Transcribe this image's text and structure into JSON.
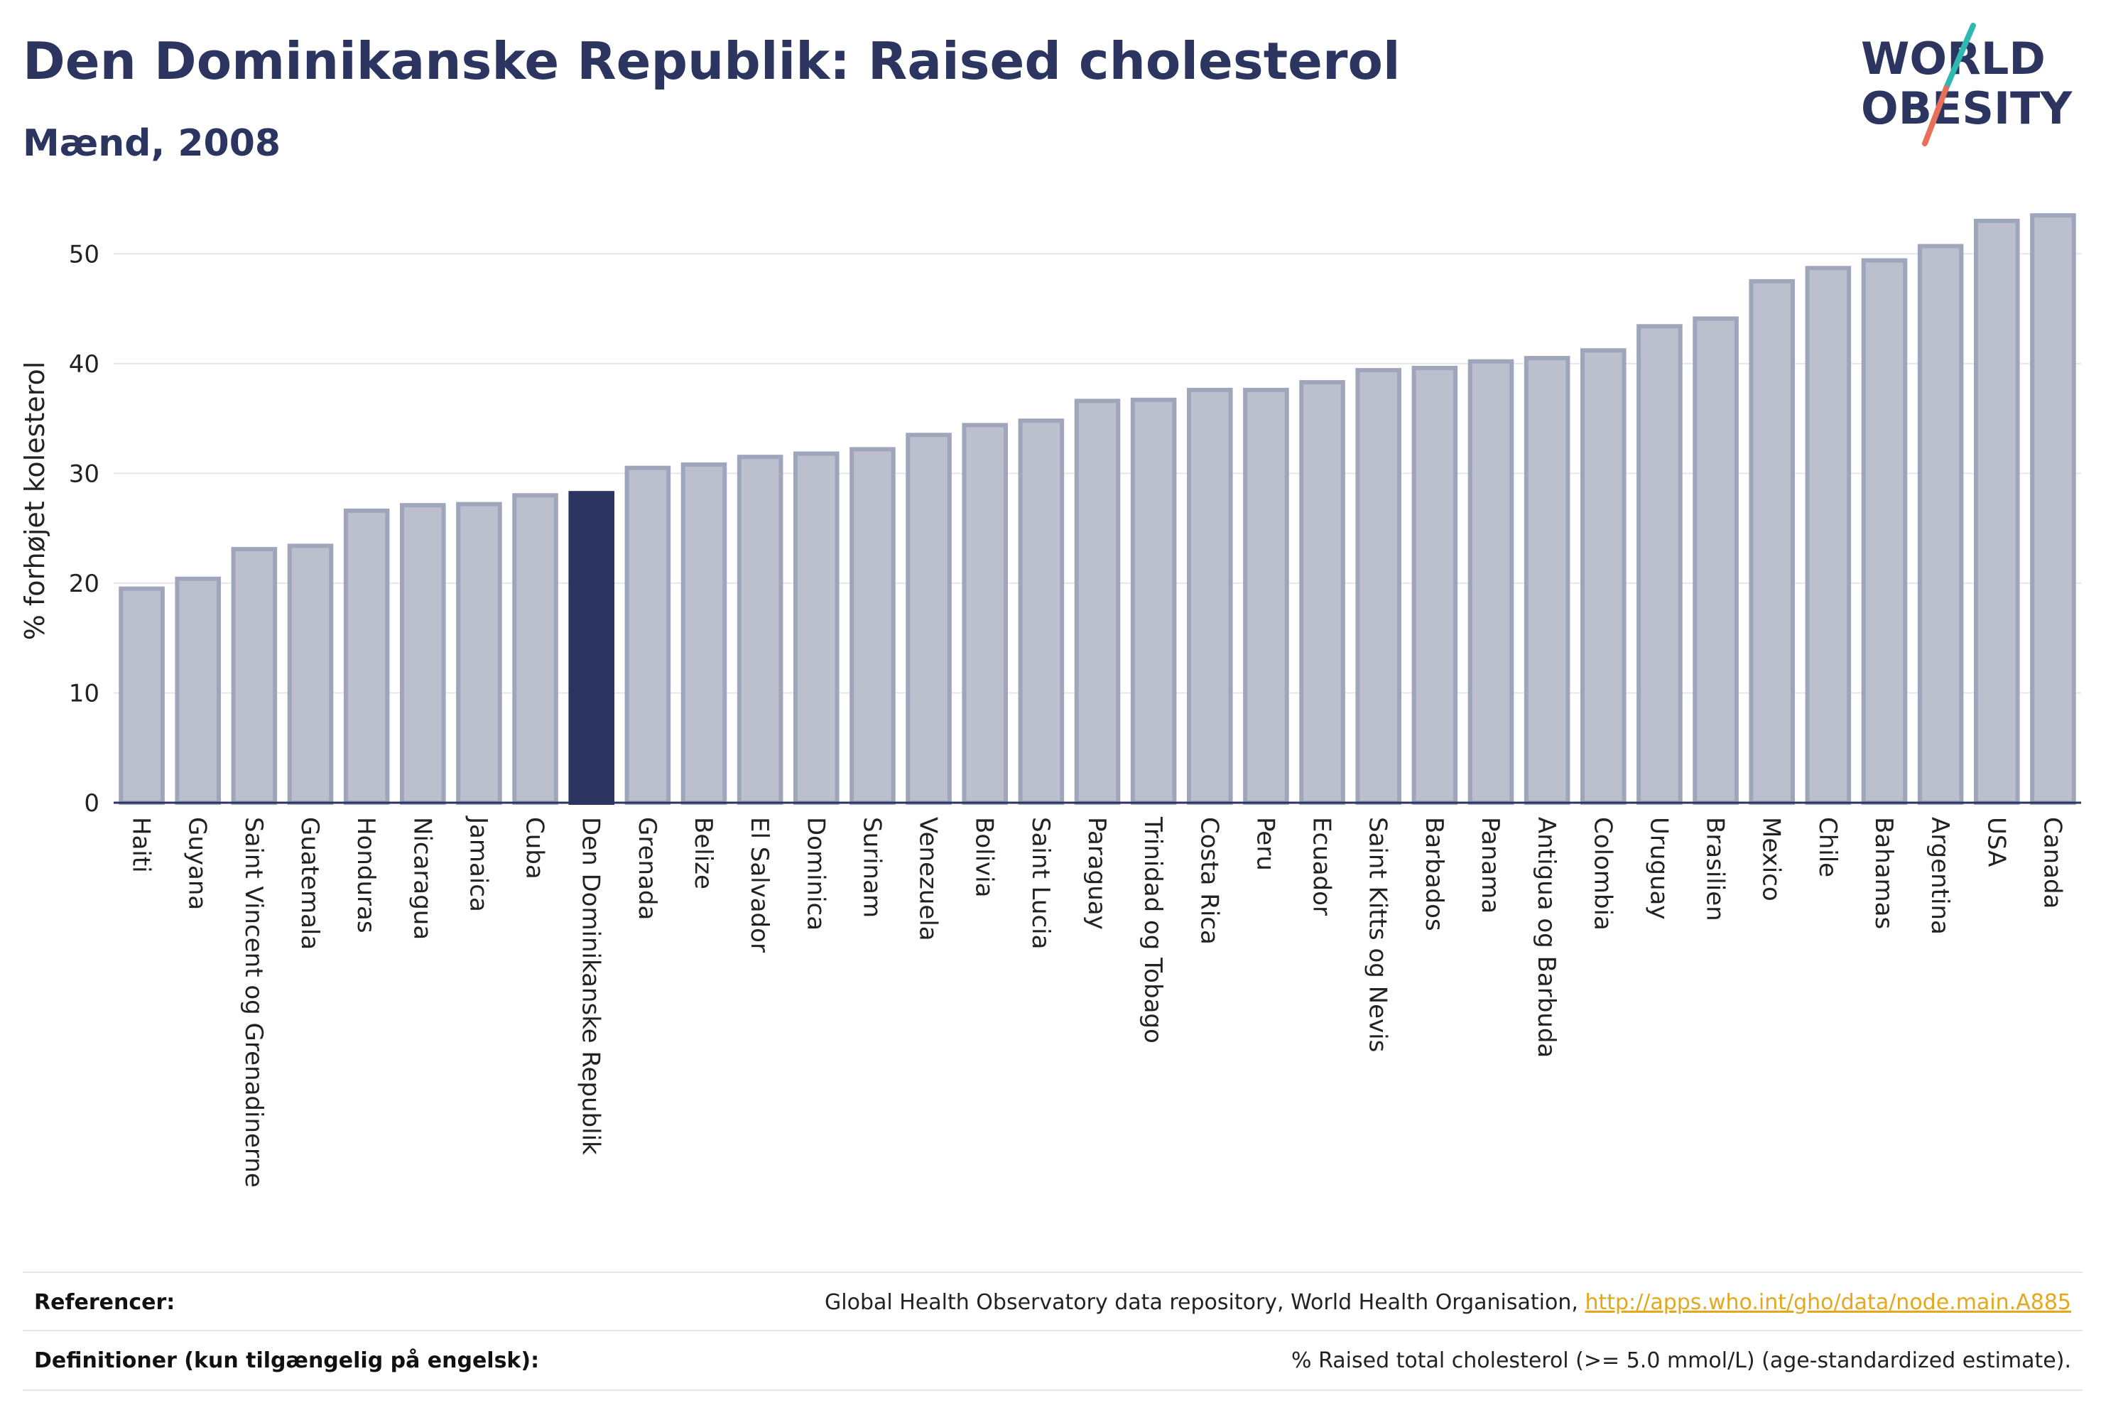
{
  "header": {
    "title": "Den Dominikanske Republik: Raised cholesterol",
    "subtitle": "Mænd, 2008"
  },
  "logo": {
    "line1": "WORLD",
    "line2": "OBESITY",
    "accent_colors": [
      "#2fb8b0",
      "#e8705a"
    ]
  },
  "colors": {
    "bar": "#bcc0ce",
    "bar_border": "#9fa5bb",
    "highlight": "#2b3560",
    "grid": "#e5e7ee",
    "title": "#2b3560"
  },
  "chart_data": {
    "type": "bar",
    "ylabel": "% forhøjet kolesterol",
    "xlabel": "",
    "ylim": [
      0,
      55
    ],
    "yticks": [
      0,
      10,
      20,
      30,
      40,
      50
    ],
    "highlight": "Den Dominikanske Republik",
    "categories": [
      "Haiti",
      "Guyana",
      "Saint Vincent og Grenadinerne",
      "Guatemala",
      "Honduras",
      "Nicaragua",
      "Jamaica",
      "Cuba",
      "Den Dominikanske Republik",
      "Grenada",
      "Belize",
      "El Salvador",
      "Dominica",
      "Surinam",
      "Venezuela",
      "Bolivia",
      "Saint Lucia",
      "Paraguay",
      "Trinidad og Tobago",
      "Costa Rica",
      "Peru",
      "Ecuador",
      "Saint Kitts og Nevis",
      "Barbados",
      "Panama",
      "Antigua og Barbuda",
      "Colombia",
      "Uruguay",
      "Brasilien",
      "Mexico",
      "Chile",
      "Bahamas",
      "Argentina",
      "USA",
      "Canada"
    ],
    "values": [
      19.5,
      20.4,
      23.1,
      23.4,
      26.6,
      27.1,
      27.2,
      28.0,
      28.2,
      30.5,
      30.8,
      31.5,
      31.8,
      32.2,
      33.5,
      34.4,
      34.8,
      36.6,
      36.7,
      37.6,
      37.6,
      38.3,
      39.4,
      39.6,
      40.2,
      40.5,
      41.2,
      43.4,
      44.1,
      47.5,
      48.7,
      49.4,
      50.7,
      53.0,
      53.5
    ]
  },
  "footer": {
    "references_label": "Referencer:",
    "references_text": "Global Health Observatory data repository, World Health Organisation, ",
    "references_link": "http://apps.who.int/gho/data/node.main.A885",
    "definitions_label": "Definitioner (kun tilgængelig på engelsk):",
    "definitions_text": "% Raised total cholesterol (>= 5.0 mmol/L) (age-standardized estimate)."
  }
}
